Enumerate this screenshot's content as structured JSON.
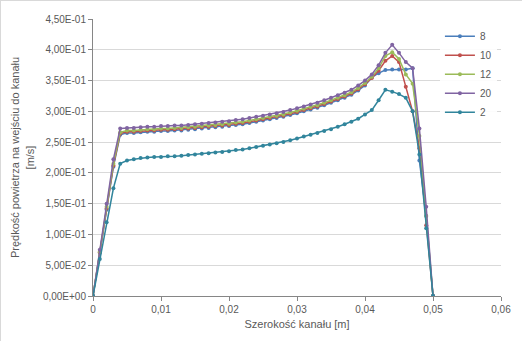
{
  "chart_data": {
    "type": "line",
    "x_label": "Szerokość kanału [m]",
    "y_label": "Prędkość powietrza na wejściu do kanału\n[m/s]",
    "x": [
      0,
      0.001,
      0.002,
      0.003,
      0.004,
      0.005,
      0.006,
      0.007,
      0.008,
      0.009,
      0.01,
      0.011,
      0.012,
      0.013,
      0.014,
      0.015,
      0.016,
      0.017,
      0.018,
      0.019,
      0.02,
      0.021,
      0.022,
      0.023,
      0.024,
      0.025,
      0.026,
      0.027,
      0.028,
      0.029,
      0.03,
      0.031,
      0.032,
      0.033,
      0.034,
      0.035,
      0.036,
      0.037,
      0.038,
      0.039,
      0.04,
      0.041,
      0.042,
      0.043,
      0.044,
      0.045,
      0.046,
      0.047,
      0.048,
      0.049,
      0.05
    ],
    "series": [
      {
        "name": "8",
        "color": "#4a7ebb",
        "values": [
          0,
          0.07,
          0.14,
          0.21,
          0.262,
          0.265,
          0.265,
          0.266,
          0.267,
          0.267,
          0.268,
          0.268,
          0.269,
          0.269,
          0.27,
          0.271,
          0.272,
          0.273,
          0.274,
          0.275,
          0.276,
          0.278,
          0.279,
          0.281,
          0.283,
          0.285,
          0.287,
          0.289,
          0.291,
          0.294,
          0.297,
          0.3,
          0.303,
          0.306,
          0.31,
          0.314,
          0.318,
          0.322,
          0.327,
          0.334,
          0.342,
          0.355,
          0.362,
          0.367,
          0.368,
          0.368,
          0.368,
          0.37,
          0.22,
          0.13,
          0
        ]
      },
      {
        "name": "10",
        "color": "#c0504d",
        "values": [
          0,
          0.071,
          0.142,
          0.212,
          0.264,
          0.267,
          0.267,
          0.268,
          0.269,
          0.269,
          0.27,
          0.27,
          0.271,
          0.271,
          0.272,
          0.273,
          0.274,
          0.275,
          0.276,
          0.277,
          0.278,
          0.28,
          0.281,
          0.283,
          0.285,
          0.287,
          0.289,
          0.291,
          0.293,
          0.296,
          0.299,
          0.302,
          0.305,
          0.308,
          0.312,
          0.316,
          0.32,
          0.324,
          0.329,
          0.336,
          0.344,
          0.354,
          0.366,
          0.382,
          0.39,
          0.38,
          0.34,
          0.3,
          0.24,
          0.115,
          0
        ]
      },
      {
        "name": "12",
        "color": "#9bbb59",
        "values": [
          0,
          0.072,
          0.145,
          0.215,
          0.266,
          0.269,
          0.269,
          0.27,
          0.271,
          0.271,
          0.272,
          0.272,
          0.273,
          0.273,
          0.274,
          0.275,
          0.276,
          0.277,
          0.278,
          0.279,
          0.28,
          0.282,
          0.283,
          0.285,
          0.287,
          0.289,
          0.291,
          0.293,
          0.295,
          0.298,
          0.301,
          0.304,
          0.307,
          0.31,
          0.314,
          0.318,
          0.322,
          0.326,
          0.331,
          0.338,
          0.346,
          0.356,
          0.37,
          0.39,
          0.396,
          0.385,
          0.36,
          0.345,
          0.26,
          0.13,
          0
        ]
      },
      {
        "name": "20",
        "color": "#8064a2",
        "values": [
          0,
          0.075,
          0.15,
          0.222,
          0.272,
          0.273,
          0.273,
          0.274,
          0.275,
          0.275,
          0.276,
          0.276,
          0.277,
          0.277,
          0.278,
          0.279,
          0.28,
          0.281,
          0.282,
          0.283,
          0.284,
          0.286,
          0.287,
          0.289,
          0.291,
          0.293,
          0.295,
          0.297,
          0.299,
          0.302,
          0.305,
          0.308,
          0.311,
          0.314,
          0.318,
          0.322,
          0.326,
          0.33,
          0.335,
          0.342,
          0.35,
          0.36,
          0.375,
          0.395,
          0.408,
          0.395,
          0.38,
          0.37,
          0.272,
          0.145,
          0
        ]
      },
      {
        "name": "2",
        "color": "#31859c",
        "values": [
          0,
          0.06,
          0.12,
          0.175,
          0.215,
          0.22,
          0.222,
          0.224,
          0.225,
          0.226,
          0.226,
          0.227,
          0.227,
          0.228,
          0.229,
          0.23,
          0.231,
          0.232,
          0.233,
          0.234,
          0.235,
          0.237,
          0.238,
          0.24,
          0.242,
          0.244,
          0.246,
          0.248,
          0.25,
          0.253,
          0.256,
          0.259,
          0.262,
          0.265,
          0.268,
          0.271,
          0.275,
          0.279,
          0.283,
          0.288,
          0.295,
          0.302,
          0.318,
          0.335,
          0.332,
          0.328,
          0.322,
          0.3,
          0.23,
          0.11,
          0
        ]
      }
    ],
    "xlim": [
      0,
      0.06
    ],
    "xticks": [
      0,
      {
        "value": 0.01,
        "label": "0,01"
      },
      {
        "value": 0.02,
        "label": "0,02"
      },
      {
        "value": 0.03,
        "label": "0,03"
      },
      {
        "value": 0.04,
        "label": "0,04"
      },
      {
        "value": 0.05,
        "label": "0,05"
      },
      {
        "value": 0.06,
        "label": "0,06"
      }
    ],
    "ylim": [
      0,
      0.45
    ],
    "yticks": [
      {
        "value": 0,
        "label": "0,00E+00"
      },
      {
        "value": 0.05,
        "label": "5,00E-02"
      },
      {
        "value": 0.1,
        "label": "1,00E-01"
      },
      {
        "value": 0.15,
        "label": "1,50E-01"
      },
      {
        "value": 0.2,
        "label": "2,00E-01"
      },
      {
        "value": 0.25,
        "label": "2,50E-01"
      },
      {
        "value": 0.3,
        "label": "3,00E-01"
      },
      {
        "value": 0.35,
        "label": "3,50E-01"
      },
      {
        "value": 0.4,
        "label": "4,00E-01"
      },
      {
        "value": 0.45,
        "label": "4,50E-01"
      }
    ],
    "grid": true,
    "legend": "top right",
    "marker": "circle",
    "line_style": "solid"
  }
}
